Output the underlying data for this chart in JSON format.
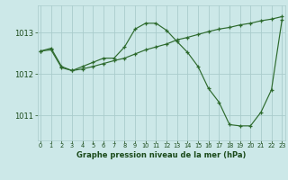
{
  "series1_x": [
    0,
    1,
    2,
    3,
    4,
    5,
    6,
    7,
    8,
    9,
    10,
    11,
    12,
    13,
    14,
    15,
    16,
    17,
    18,
    19,
    20,
    21,
    22,
    23
  ],
  "series1_y": [
    1012.55,
    1012.62,
    1012.18,
    1012.08,
    1012.18,
    1012.28,
    1012.38,
    1012.38,
    1012.65,
    1013.08,
    1013.22,
    1013.22,
    1013.05,
    1012.78,
    1012.52,
    1012.18,
    1011.65,
    1011.32,
    1010.78,
    1010.75,
    1010.75,
    1011.08,
    1011.62,
    1013.3
  ],
  "series2_x": [
    0,
    1,
    2,
    3,
    4,
    5,
    6,
    7,
    8,
    9,
    10,
    11,
    12,
    13,
    14,
    15,
    16,
    17,
    18,
    19,
    20,
    21,
    22,
    23
  ],
  "series2_y": [
    1012.55,
    1012.58,
    1012.15,
    1012.08,
    1012.12,
    1012.18,
    1012.25,
    1012.32,
    1012.38,
    1012.48,
    1012.58,
    1012.65,
    1012.72,
    1012.82,
    1012.88,
    1012.95,
    1013.02,
    1013.08,
    1013.12,
    1013.18,
    1013.22,
    1013.28,
    1013.32,
    1013.38
  ],
  "line_color": "#2d6a2d",
  "bg_color": "#cce8e8",
  "grid_color": "#aacccc",
  "label_color": "#1a4a1a",
  "yticks": [
    1011,
    1012,
    1013
  ],
  "xtick_labels": [
    "0",
    "1",
    "2",
    "3",
    "4",
    "5",
    "6",
    "7",
    "8",
    "9",
    "10",
    "11",
    "12",
    "13",
    "14",
    "15",
    "16",
    "17",
    "18",
    "19",
    "20",
    "21",
    "22",
    "23"
  ],
  "xticks": [
    0,
    1,
    2,
    3,
    4,
    5,
    6,
    7,
    8,
    9,
    10,
    11,
    12,
    13,
    14,
    15,
    16,
    17,
    18,
    19,
    20,
    21,
    22,
    23
  ],
  "xlabel": "Graphe pression niveau de la mer (hPa)",
  "ylim": [
    1010.4,
    1013.65
  ],
  "xlim": [
    -0.3,
    23.3
  ]
}
